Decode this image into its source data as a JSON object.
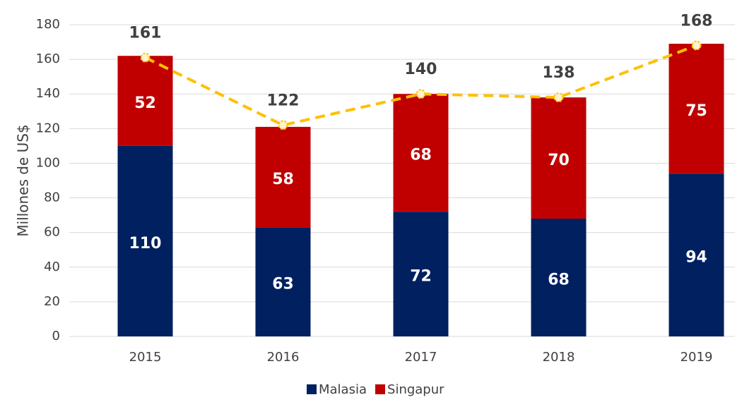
{
  "chart_data": {
    "type": "stacked-bar",
    "y_axis_label": "Millones de US$",
    "categories": [
      "2015",
      "2016",
      "2017",
      "2018",
      "2019"
    ],
    "series": [
      {
        "name": "Malasia",
        "color": "#002060",
        "values": [
          110,
          63,
          72,
          68,
          94
        ]
      },
      {
        "name": "Singapur",
        "color": "#c00000",
        "values": [
          52,
          58,
          68,
          70,
          75
        ]
      }
    ],
    "totals": {
      "color": "#ffc000",
      "values": [
        161,
        122,
        140,
        138,
        168
      ]
    },
    "ylim": [
      0,
      180
    ],
    "yticks": [
      0,
      20,
      40,
      60,
      80,
      100,
      120,
      140,
      160,
      180
    ],
    "grid": true,
    "legend": "bottom"
  }
}
